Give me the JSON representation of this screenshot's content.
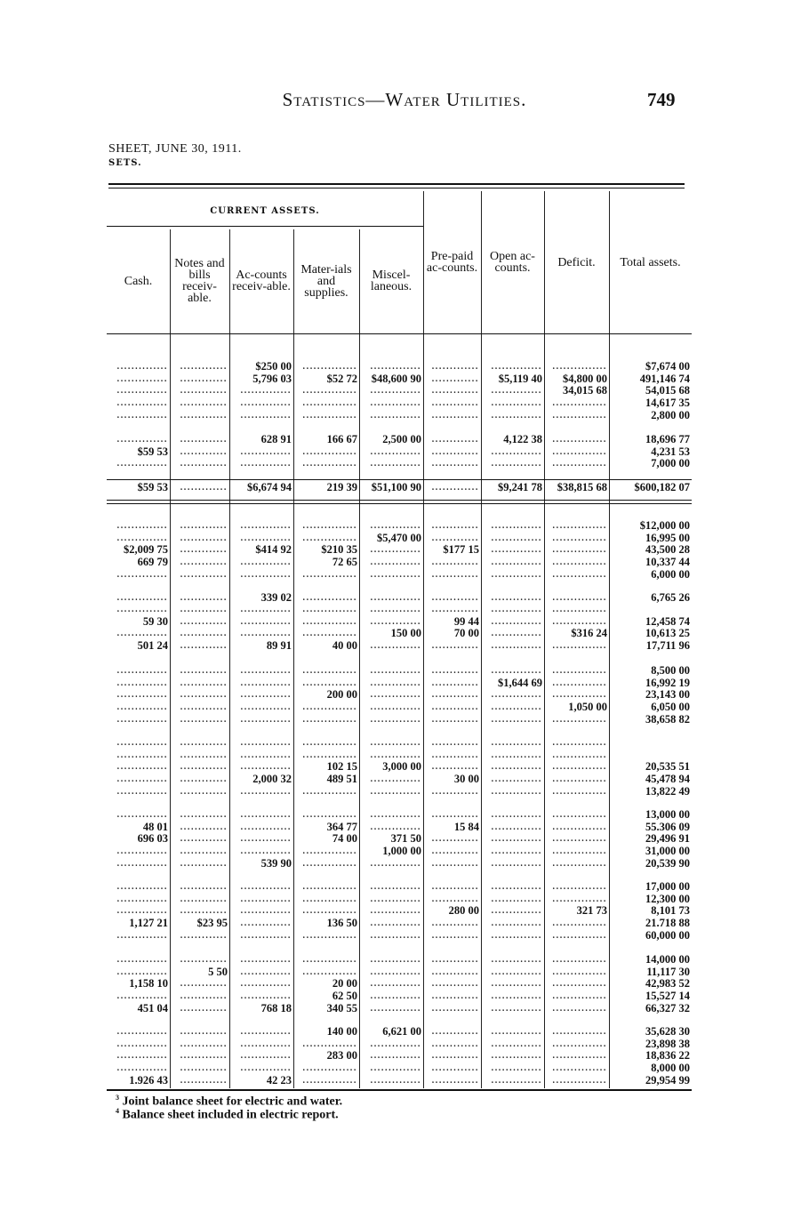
{
  "running_head": "Statistics—Water Utilities.",
  "page_number": "749",
  "sheet_title": "SHEET, JUNE 30, 1911.",
  "sets_label": "SETS.",
  "group_header": "CURRENT ASSETS.",
  "columns": [
    "Cash.",
    "Notes and bills receiv-able.",
    "Ac-counts receiv-able.",
    "Mater-ials and supplies.",
    "Miscel-laneous.",
    "Pre-paid ac-counts.",
    "Open ac-counts.",
    "Deficit.",
    "Total assets."
  ],
  "blocks": [
    {
      "rows": [
        [
          "",
          "",
          "$250 00",
          "",
          "",
          "",
          "",
          "",
          "$7,674 00"
        ],
        [
          "",
          "",
          "5,796 03",
          "$52 72",
          "$48,600 90",
          "",
          "$5,119 40",
          "$4,800 00",
          "491,146 74"
        ],
        [
          "",
          "",
          "",
          "",
          "",
          "",
          "",
          "34,015 68",
          "54,015 68"
        ],
        [
          "",
          "",
          "",
          "",
          "",
          "",
          "",
          "",
          "14,617 35"
        ],
        [
          "",
          "",
          "",
          "",
          "",
          "",
          "",
          "",
          "2,800 00"
        ]
      ]
    },
    {
      "rows": [
        [
          "",
          "",
          "628 91",
          "166 67",
          "2,500 00",
          "",
          "4,122 38",
          "",
          "18,696 77"
        ],
        [
          "$59 53",
          "",
          "",
          "",
          "",
          "",
          "",
          "",
          "4,231 53"
        ],
        [
          "",
          "",
          "",
          "",
          "",
          "",
          "",
          "",
          "7,000 00"
        ]
      ]
    },
    {
      "rows": [
        [
          "$59 53",
          "",
          "$6,674 94",
          "219 39",
          "$51,100 90",
          "",
          "$9,241 78",
          "$38,815 68",
          "$600,182 07"
        ]
      ]
    },
    {
      "rows": [
        [
          "",
          "",
          "",
          "",
          "",
          "",
          "",
          "",
          "$12,000 00"
        ],
        [
          "",
          "",
          "",
          "",
          "$5,470 00",
          "",
          "",
          "",
          "16,995 00"
        ],
        [
          "$2,009 75",
          "",
          "$414 92",
          "$210 35",
          "",
          "$177 15",
          "",
          "",
          "43,500 28"
        ],
        [
          "669 79",
          "",
          "",
          "72 65",
          "",
          "",
          "",
          "",
          "10,337 44"
        ],
        [
          "",
          "",
          "",
          "",
          "",
          "",
          "",
          "",
          "6,000 00"
        ]
      ]
    },
    {
      "rows": [
        [
          "",
          "",
          "339 02",
          "",
          "",
          "",
          "",
          "",
          "6,765 26"
        ]
      ]
    },
    {
      "rows": [
        [
          "",
          "",
          "",
          "",
          "",
          "",
          "",
          "",
          ""
        ],
        [
          "59 30",
          "",
          "",
          "",
          "",
          "99 44",
          "",
          "",
          "12,458 74"
        ],
        [
          "",
          "",
          "",
          "",
          "150 00",
          "70 00",
          "",
          "$316 24",
          "10,613 25"
        ],
        [
          "501 24",
          "",
          "89 91",
          "40 00",
          "",
          "",
          "",
          "",
          "17,711 96"
        ]
      ]
    },
    {
      "rows": [
        [
          "",
          "",
          "",
          "",
          "",
          "",
          "",
          "",
          "8,500 00"
        ],
        [
          "",
          "",
          "",
          "",
          "",
          "",
          "$1,644 69",
          "",
          "16,992 19"
        ],
        [
          "",
          "",
          "",
          "200 00",
          "",
          "",
          "",
          "",
          "23,143 00"
        ],
        [
          "",
          "",
          "",
          "",
          "",
          "",
          "",
          "1,050 00",
          "6,050 00"
        ],
        [
          "",
          "",
          "",
          "",
          "",
          "",
          "",
          "",
          "38,658 82"
        ]
      ]
    },
    {
      "rows": [
        [
          "",
          "",
          "",
          "",
          "",
          "",
          "",
          "",
          ""
        ],
        [
          "",
          "",
          "",
          "",
          "",
          "",
          "",
          "",
          ""
        ],
        [
          "",
          "",
          "",
          "102 15",
          "3,000 00",
          "",
          "",
          "",
          "20,535 51"
        ],
        [
          "",
          "",
          "2,000 32",
          "489 51",
          "",
          "30 00",
          "",
          "",
          "45,478 94"
        ],
        [
          "",
          "",
          "",
          "",
          "",
          "",
          "",
          "",
          "13,822 49"
        ]
      ]
    },
    {
      "rows": [
        [
          "",
          "",
          "",
          "",
          "",
          "",
          "",
          "",
          "13,000 00"
        ],
        [
          "48 01",
          "",
          "",
          "364 77",
          "",
          "15 84",
          "",
          "",
          "55.306 09"
        ],
        [
          "696 03",
          "",
          "",
          "74 00",
          "371 50",
          "",
          "",
          "",
          "29,496 91"
        ],
        [
          "",
          "",
          "",
          "",
          "1,000 00",
          "",
          "",
          "",
          "31,000 00"
        ],
        [
          "",
          "",
          "539 90",
          "",
          "",
          "",
          "",
          "",
          "20,539 90"
        ]
      ]
    },
    {
      "rows": [
        [
          "",
          "",
          "",
          "",
          "",
          "",
          "",
          "",
          "17,000 00"
        ],
        [
          "",
          "",
          "",
          "",
          "",
          "",
          "",
          "",
          "12,300 00"
        ],
        [
          "",
          "",
          "",
          "",
          "",
          "280 00",
          "",
          "321 73",
          "8,101 73"
        ],
        [
          "1,127 21",
          "$23 95",
          "",
          "136 50",
          "",
          "",
          "",
          "",
          "21.718 88"
        ],
        [
          "",
          "",
          "",
          "",
          "",
          "",
          "",
          "",
          "60,000 00"
        ]
      ]
    },
    {
      "rows": [
        [
          "",
          "",
          "",
          "",
          "",
          "",
          "",
          "",
          "14,000 00"
        ],
        [
          "",
          "5 50",
          "",
          "",
          "",
          "",
          "",
          "",
          "11,117 30"
        ],
        [
          "1,158 10",
          "",
          "",
          "20 00",
          "",
          "",
          "",
          "",
          "42,983 52"
        ],
        [
          "",
          "",
          "",
          "62 50",
          "",
          "",
          "",
          "",
          "15,527 14"
        ],
        [
          "451 04",
          "",
          "768 18",
          "340 55",
          "",
          "",
          "",
          "",
          "66,327 32"
        ]
      ]
    },
    {
      "rows": [
        [
          "",
          "",
          "",
          "140 00",
          "6,621 00",
          "",
          "",
          "",
          "35,628 30"
        ],
        [
          "",
          "",
          "",
          "",
          "",
          "",
          "",
          "",
          "23,898 38"
        ],
        [
          "",
          "",
          "",
          "283 00",
          "",
          "",
          "",
          "",
          "18,836 22"
        ],
        [
          "",
          "",
          "",
          "",
          "",
          "",
          "",
          "",
          "8,000 00"
        ],
        [
          "1.926 43",
          "",
          "42 23",
          "",
          "",
          "",
          "",
          "",
          "29,954 99"
        ]
      ]
    }
  ],
  "footnotes": [
    {
      "mark": "3",
      "text": "Joint balance sheet for electric and water."
    },
    {
      "mark": "4",
      "text": "Balance sheet included in electric report."
    }
  ]
}
